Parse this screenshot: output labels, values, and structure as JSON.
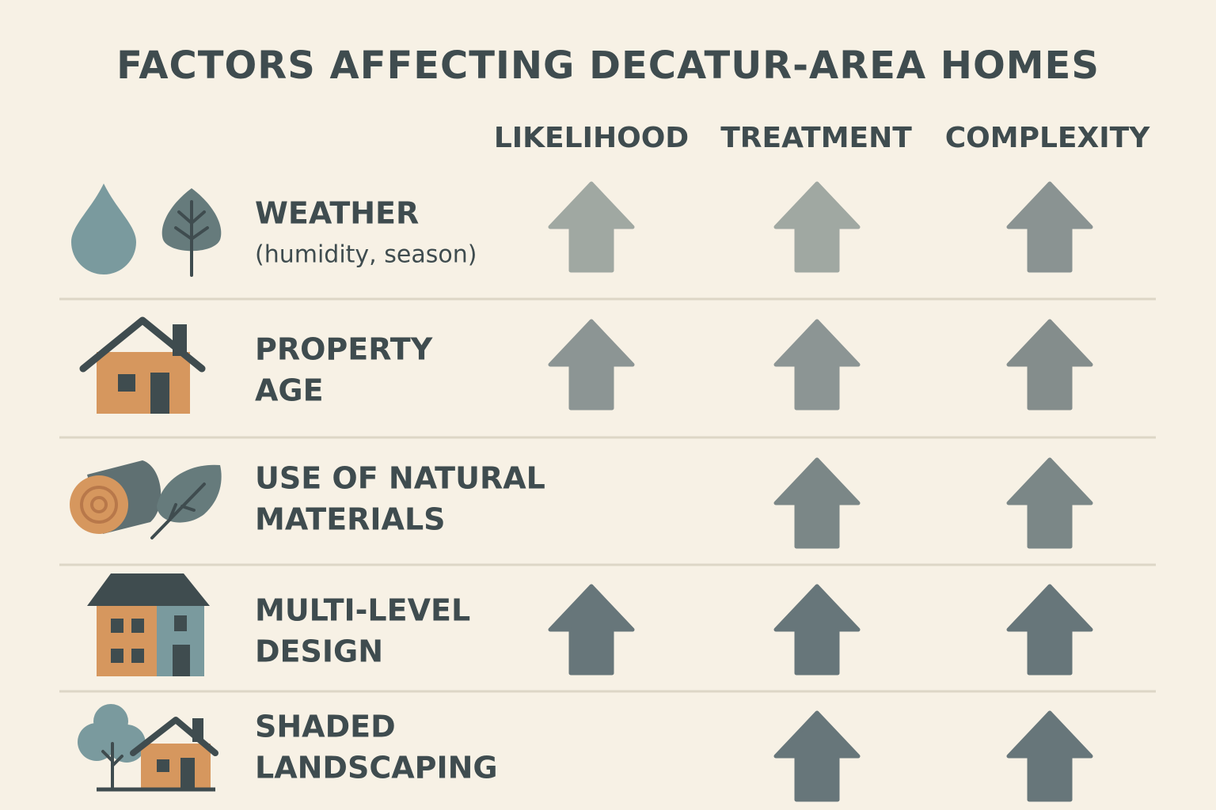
{
  "header": {
    "title": "FACTORS AFFECTING DECATUR-AREA HOMES"
  },
  "columns": [
    "LIKELIHOOD",
    "TREATMENT",
    "COMPLEXITY"
  ],
  "rows": [
    {
      "label": [
        "WEATHER"
      ],
      "note": "(humidity, season)"
    },
    {
      "label": [
        "PROPERTY",
        "AGE"
      ]
    },
    {
      "label": [
        "USE OF NATURAL",
        "MATERIALS"
      ]
    },
    {
      "label": [
        "MULTI-LEVEL",
        "DESIGN"
      ]
    },
    {
      "label": [
        "SHADED",
        "LANDSCAPING"
      ]
    }
  ]
}
